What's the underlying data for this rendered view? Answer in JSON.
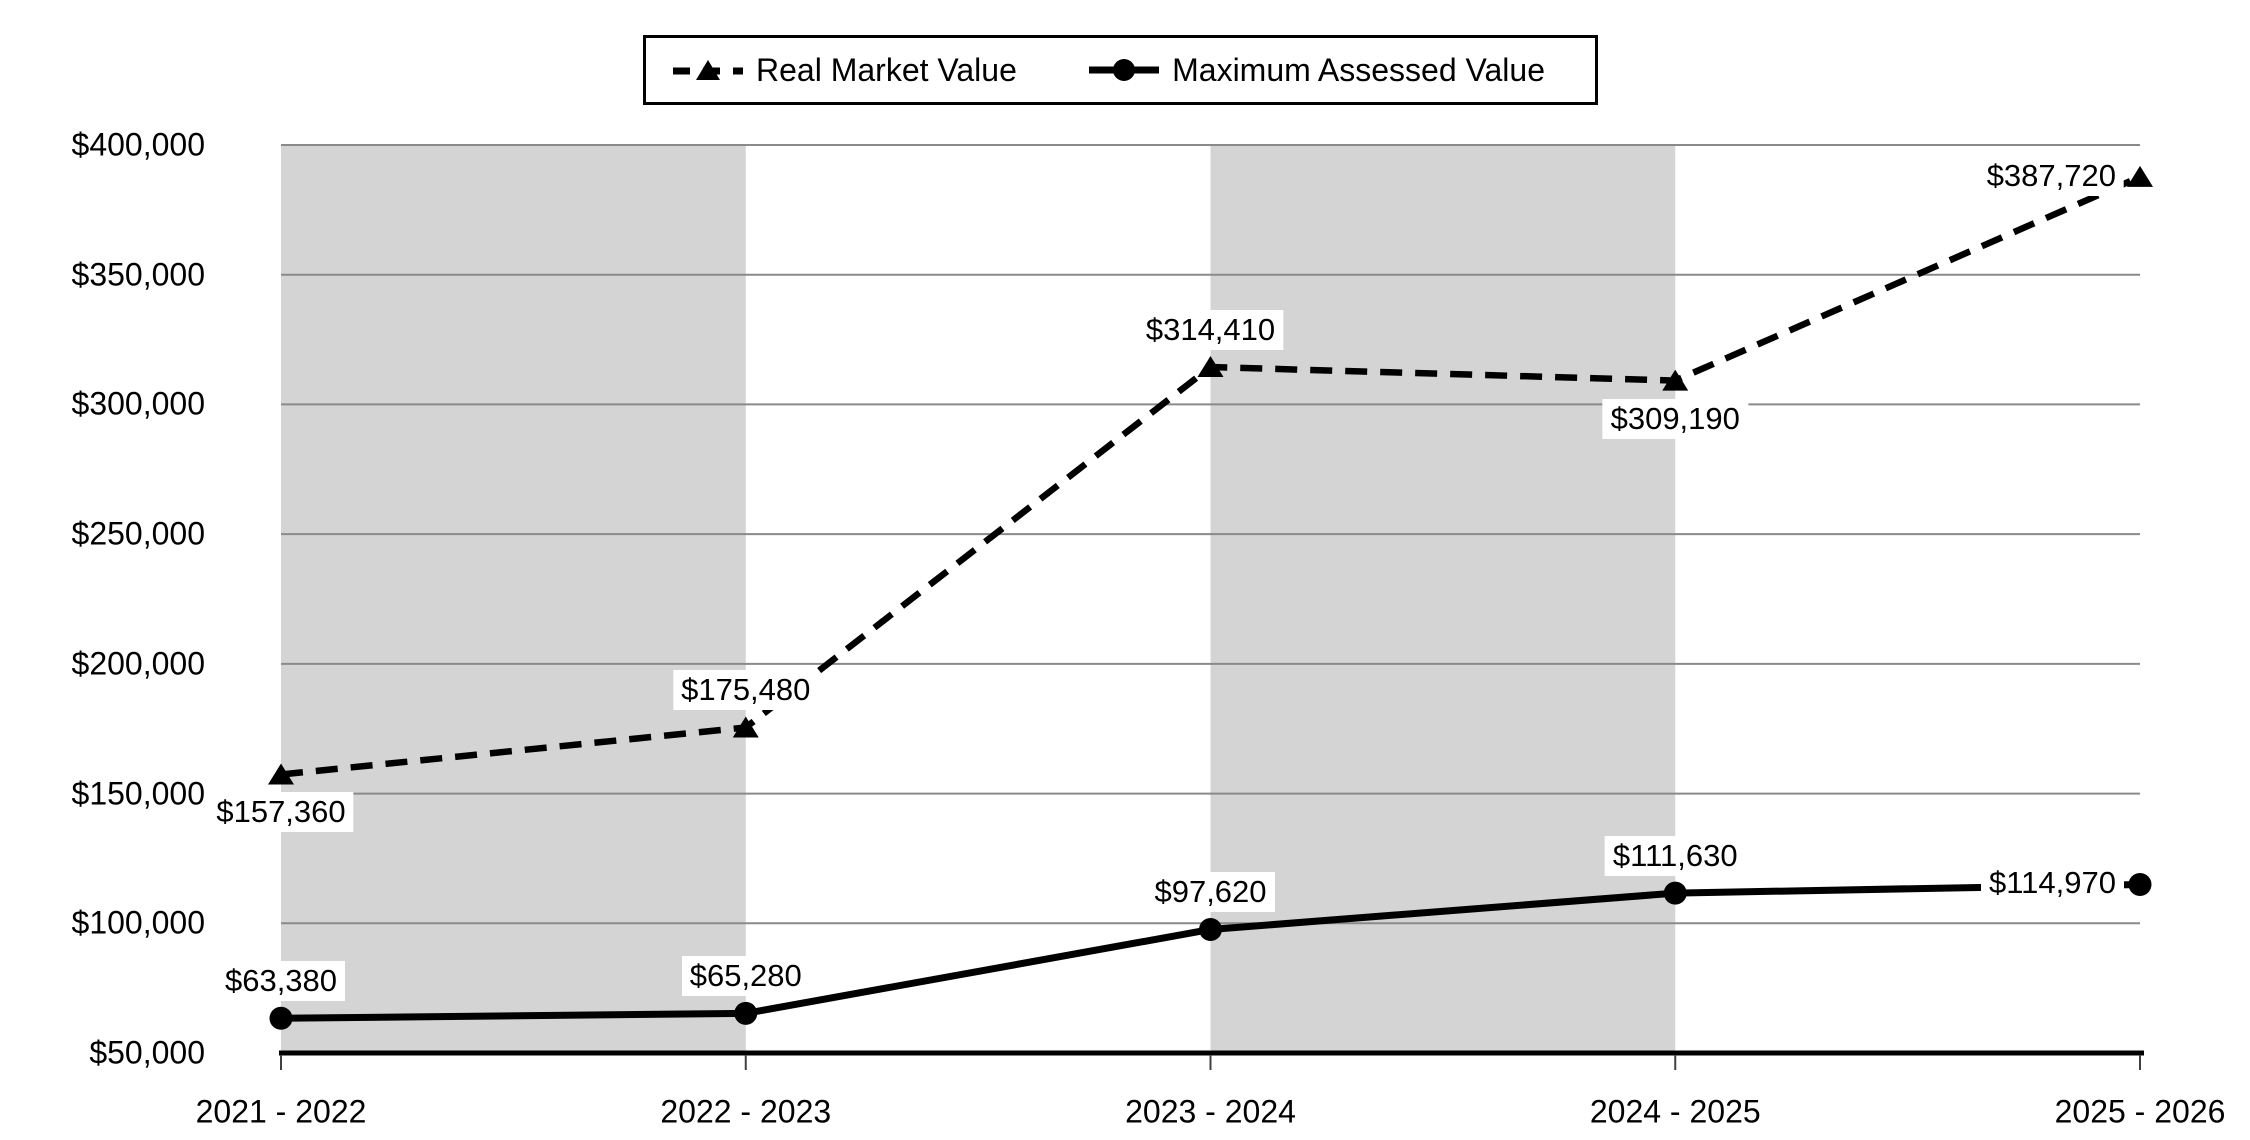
{
  "chart_data": {
    "type": "line",
    "categories": [
      "2021 - 2022",
      "2022 - 2023",
      "2023 - 2024",
      "2024 - 2025",
      "2025 - 2026"
    ],
    "series": [
      {
        "name": "Real Market Value",
        "line_style": "dashed",
        "marker": "triangle",
        "values": [
          157360,
          175480,
          314410,
          309190,
          387720
        ],
        "labels": [
          "$157,360",
          "$175,480",
          "$314,410",
          "$309,190",
          "$387,720"
        ],
        "label_pos": [
          "below",
          "above",
          "above",
          "below",
          "left"
        ]
      },
      {
        "name": "Maximum Assessed Value",
        "line_style": "solid",
        "marker": "circle",
        "values": [
          63380,
          65280,
          97620,
          111630,
          114970
        ],
        "labels": [
          "$63,380",
          "$65,280",
          "$97,620",
          "$111,630",
          "$114,970"
        ],
        "label_pos": [
          "above",
          "above",
          "above",
          "above",
          "left"
        ]
      }
    ],
    "y_axis": {
      "min": 50000,
      "max": 400000,
      "step": 50000,
      "tick_labels": [
        "$50,000",
        "$100,000",
        "$150,000",
        "$200,000",
        "$250,000",
        "$300,000",
        "$350,000",
        "$400,000"
      ]
    },
    "legend": {
      "position": "top",
      "entries": [
        "Real Market Value",
        "Maximum Assessed Value"
      ]
    },
    "grid": true,
    "plot_bands": {
      "intervals": [
        [
          0,
          1
        ],
        [
          2,
          3
        ]
      ]
    },
    "colors": {
      "series": "#000000",
      "gridline": "#8a8a8a",
      "band": "#d4d4d4",
      "axis": "#000000",
      "tick": "#404040",
      "background": "#ffffff"
    }
  }
}
